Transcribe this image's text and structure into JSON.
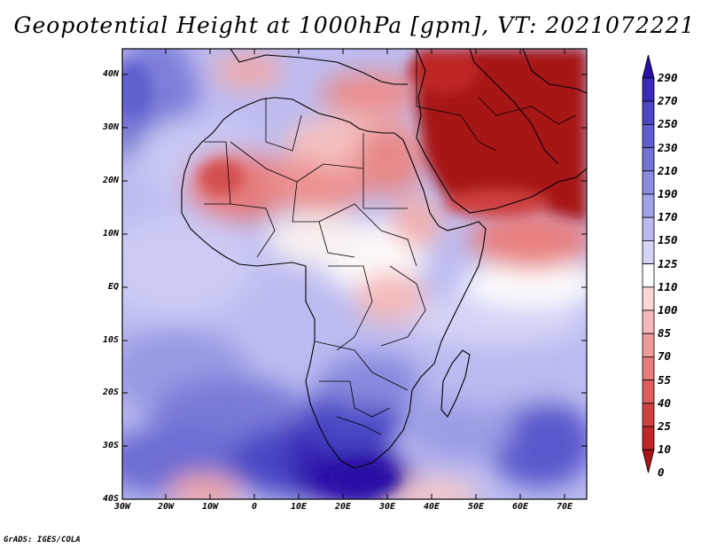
{
  "title": "Geopotential Height at 1000hPa [gpm], VT: 2021072221",
  "credit": "GrADS: IGES/COLA",
  "latitude_labels": [
    "40N",
    "30N",
    "20N",
    "10N",
    "EQ",
    "10S",
    "20S",
    "30S",
    "40S"
  ],
  "longitude_labels": [
    "30W",
    "20W",
    "10W",
    "0",
    "10E",
    "20E",
    "30E",
    "40E",
    "50E",
    "60E",
    "70E"
  ],
  "colorbar": {
    "levels": [
      "290",
      "270",
      "250",
      "230",
      "210",
      "190",
      "170",
      "150",
      "125",
      "110",
      "100",
      "85",
      "70",
      "55",
      "40",
      "25",
      "10",
      "0"
    ],
    "colors": [
      "#2b0fa6",
      "#3a2cb8",
      "#4a46c4",
      "#5e5ecd",
      "#7474d6",
      "#8b8bdf",
      "#a2a2e8",
      "#babaf0",
      "#d4d4f7",
      "#ffffff",
      "#fad6d6",
      "#f5b8b8",
      "#ef9a9a",
      "#e67c7c",
      "#dc5e5e",
      "#cf4040",
      "#bf2626",
      "#a71515"
    ]
  },
  "map": {
    "region": "Africa",
    "lon_range": [
      -30,
      75
    ],
    "lat_range": [
      -40,
      45
    ],
    "high_color": "#2b0fa6",
    "low_color": "#a71515"
  }
}
